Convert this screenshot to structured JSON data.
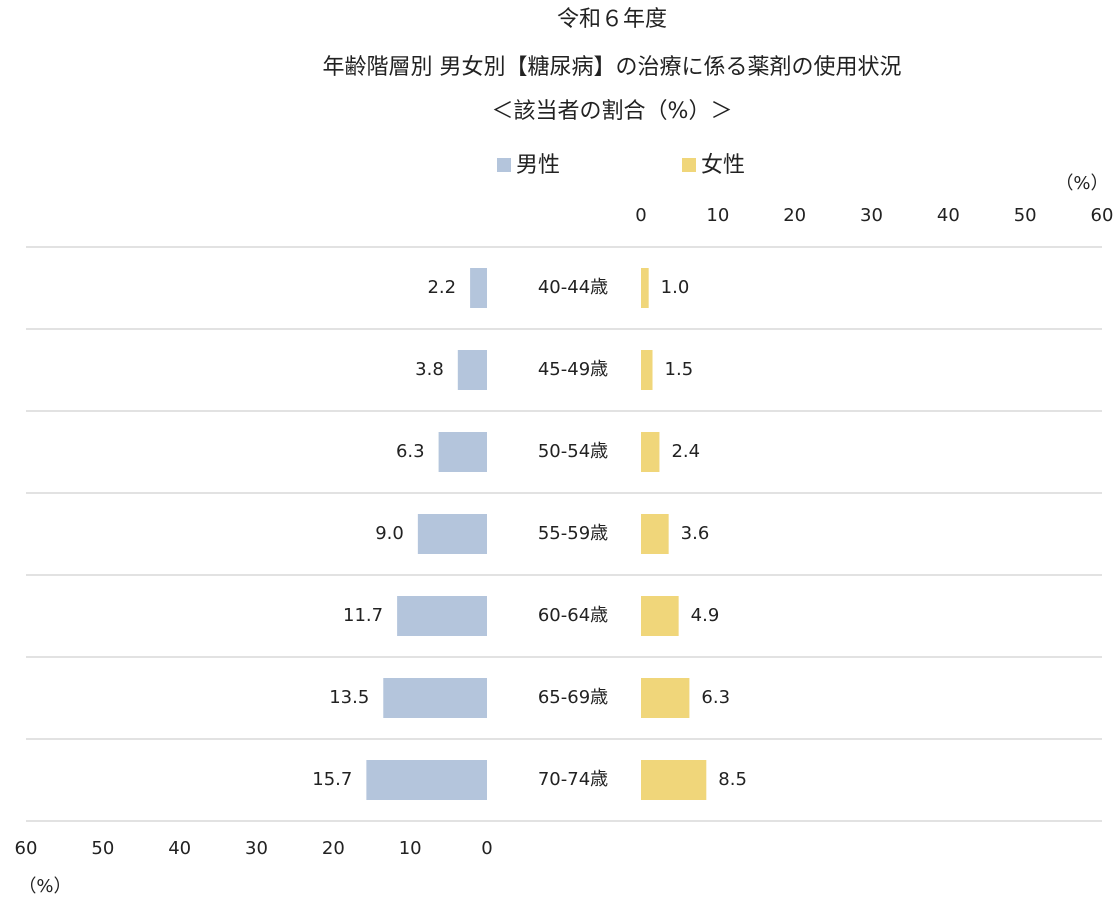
{
  "chart_data": {
    "type": "butterfly",
    "title": [
      "令和６年度",
      "年齢階層別 男女別【糖尿病】の治療に係る薬剤の使用状況",
      "＜該当者の割合（%）＞"
    ],
    "categories": [
      "40-44歳",
      "45-49歳",
      "50-54歳",
      "55-59歳",
      "60-64歳",
      "65-69歳",
      "70-74歳"
    ],
    "series": [
      {
        "name": "男性",
        "color": "#b4c5dc",
        "side": "left",
        "values": [
          2.2,
          3.8,
          6.3,
          9,
          11.7,
          13.5,
          15.7
        ],
        "value_labels": [
          "2.2",
          "3.8",
          "6.3",
          "9.0",
          "11.7",
          "13.5",
          "15.7"
        ]
      },
      {
        "name": "女性",
        "color": "#f0d67a",
        "side": "right",
        "values": [
          1,
          1.5,
          2.4,
          3.6,
          4.9,
          6.3,
          8.5
        ],
        "value_labels": [
          "1.0",
          "1.5",
          "2.4",
          "3.6",
          "4.9",
          "6.3",
          "8.5"
        ]
      }
    ],
    "xlim": [
      0,
      60
    ],
    "xticks": [
      0,
      10,
      20,
      30,
      40,
      50,
      60
    ],
    "x_label": "（%）",
    "grid": true
  }
}
